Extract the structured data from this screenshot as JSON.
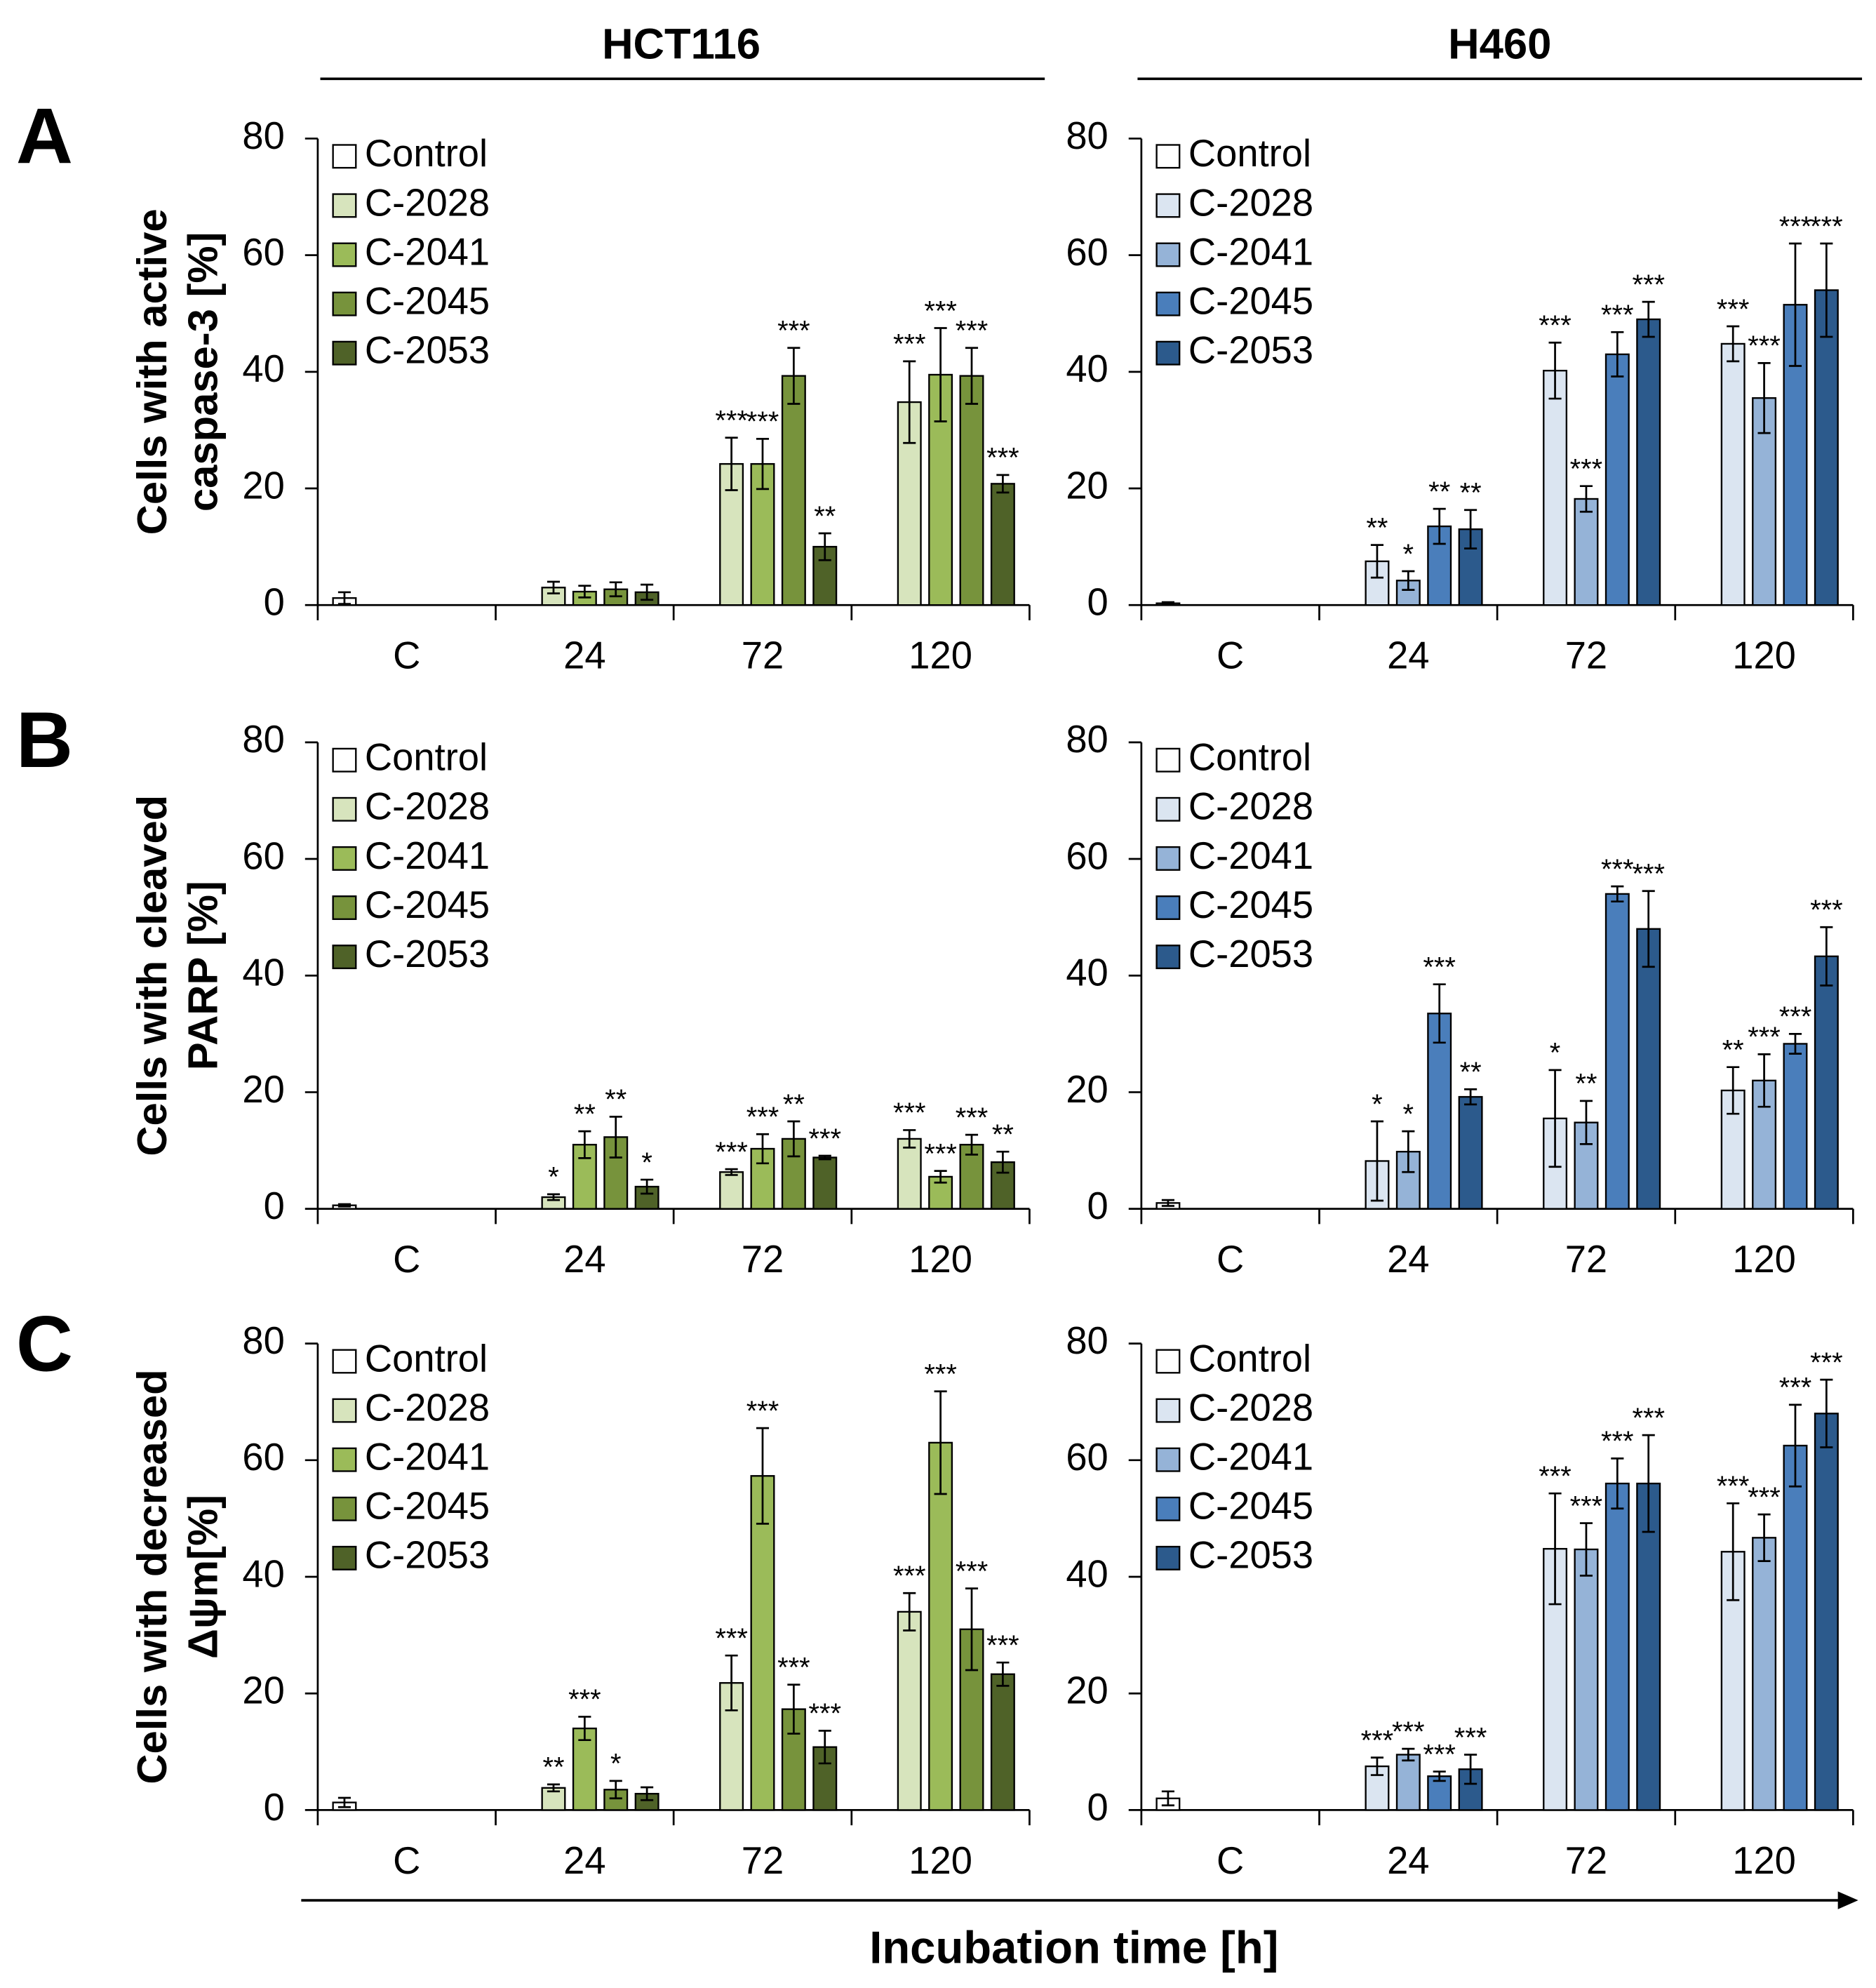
{
  "columns": [
    "HCT116",
    "H460"
  ],
  "panels": [
    "A",
    "B",
    "C"
  ],
  "xlabel": "Incubation time [h]",
  "chart_data": [
    {
      "type": "bar",
      "ylabel": [
        "Cells with active",
        "caspase-3 [%]"
      ],
      "categories": [
        "C",
        "24",
        "72",
        "120"
      ],
      "ylim": [
        0,
        80
      ],
      "yticks": [
        0,
        20,
        40,
        60,
        80
      ],
      "legend": "upper left",
      "series": [
        {
          "name": "Control",
          "color": "#ffffff",
          "values": [
            1.2,
            null,
            null,
            null
          ],
          "errors": [
            1,
            null,
            null,
            null
          ]
        },
        {
          "name": "C-2028",
          "color": "#d7e4bd",
          "values": [
            null,
            3,
            24.2,
            34.8
          ],
          "errors": [
            null,
            1,
            4.5,
            7
          ],
          "significance": [
            null,
            null,
            "***",
            "***"
          ]
        },
        {
          "name": "C-2041",
          "color": "#9bbb59",
          "values": [
            null,
            2.3,
            24.2,
            39.5
          ],
          "errors": [
            null,
            1,
            4.3,
            8
          ],
          "significance": [
            null,
            null,
            "***",
            "***"
          ]
        },
        {
          "name": "C-2045",
          "color": "#77933c",
          "values": [
            null,
            2.7,
            39.3,
            39.3
          ],
          "errors": [
            null,
            1.2,
            4.8,
            4.8
          ],
          "significance": [
            null,
            null,
            "***",
            "***"
          ]
        },
        {
          "name": "C-2053",
          "color": "#4f6228",
          "values": [
            null,
            2.2,
            10,
            20.8
          ],
          "errors": [
            null,
            1.3,
            2.3,
            1.5
          ],
          "significance": [
            null,
            null,
            "**",
            "***"
          ]
        }
      ]
    },
    {
      "type": "bar",
      "categories": [
        "C",
        "24",
        "72",
        "120"
      ],
      "ylim": [
        0,
        80
      ],
      "yticks": [
        0,
        20,
        40,
        60,
        80
      ],
      "legend": "upper left",
      "series": [
        {
          "name": "Control",
          "color": "#ffffff",
          "values": [
            0.3,
            null,
            null,
            null
          ],
          "errors": [
            0.2,
            null,
            null,
            null
          ]
        },
        {
          "name": "C-2028",
          "color": "#dbe5f1",
          "values": [
            null,
            7.5,
            40.2,
            44.8
          ],
          "errors": [
            null,
            2.8,
            4.8,
            3
          ],
          "significance": [
            null,
            "**",
            "***",
            "***"
          ]
        },
        {
          "name": "C-2041",
          "color": "#95b3d7",
          "values": [
            null,
            4.2,
            18.2,
            35.5
          ],
          "errors": [
            null,
            1.6,
            2.2,
            6
          ],
          "significance": [
            null,
            "*",
            "***",
            "***"
          ]
        },
        {
          "name": "C-2045",
          "color": "#4a7ebb",
          "values": [
            null,
            13.5,
            43,
            51.5
          ],
          "errors": [
            null,
            3,
            3.8,
            10.5
          ],
          "significance": [
            null,
            "**",
            "***",
            "***"
          ]
        },
        {
          "name": "C-2053",
          "color": "#2c5a8c",
          "values": [
            null,
            13,
            49,
            54
          ],
          "errors": [
            null,
            3.3,
            3,
            8
          ],
          "significance": [
            null,
            "**",
            "***",
            "***"
          ]
        }
      ]
    },
    {
      "type": "bar",
      "ylabel": [
        "Cells with cleaved",
        "PARP [%]"
      ],
      "categories": [
        "C",
        "24",
        "72",
        "120"
      ],
      "ylim": [
        0,
        80
      ],
      "yticks": [
        0,
        20,
        40,
        60,
        80
      ],
      "legend": "upper left",
      "series": [
        {
          "name": "Control",
          "color": "#ffffff",
          "values": [
            0.6,
            null,
            null,
            null
          ],
          "errors": [
            0.2,
            null,
            null,
            null
          ]
        },
        {
          "name": "C-2028",
          "color": "#d7e4bd",
          "values": [
            null,
            2,
            6.3,
            12
          ],
          "errors": [
            null,
            0.5,
            0.5,
            1.5
          ],
          "significance": [
            null,
            "*",
            "***",
            "***"
          ]
        },
        {
          "name": "C-2041",
          "color": "#9bbb59",
          "values": [
            null,
            11,
            10.3,
            5.5
          ],
          "errors": [
            null,
            2.3,
            2.5,
            1
          ],
          "significance": [
            null,
            "**",
            "***",
            "***"
          ]
        },
        {
          "name": "C-2045",
          "color": "#77933c",
          "values": [
            null,
            12.3,
            12,
            11
          ],
          "errors": [
            null,
            3.5,
            3,
            1.7
          ],
          "significance": [
            null,
            "**",
            "**",
            "***"
          ]
        },
        {
          "name": "C-2053",
          "color": "#4f6228",
          "values": [
            null,
            3.8,
            8.8,
            8
          ],
          "errors": [
            null,
            1.2,
            0.3,
            1.8
          ],
          "significance": [
            null,
            "*",
            "***",
            "**"
          ]
        }
      ]
    },
    {
      "type": "bar",
      "categories": [
        "C",
        "24",
        "72",
        "120"
      ],
      "ylim": [
        0,
        80
      ],
      "yticks": [
        0,
        20,
        40,
        60,
        80
      ],
      "legend": "upper left",
      "series": [
        {
          "name": "Control",
          "color": "#ffffff",
          "values": [
            1,
            null,
            null,
            null
          ],
          "errors": [
            0.5,
            null,
            null,
            null
          ]
        },
        {
          "name": "C-2028",
          "color": "#dbe5f1",
          "values": [
            null,
            8.2,
            15.5,
            20.3
          ],
          "errors": [
            null,
            6.8,
            8.3,
            4
          ],
          "significance": [
            null,
            "*",
            "*",
            "**"
          ]
        },
        {
          "name": "C-2041",
          "color": "#95b3d7",
          "values": [
            null,
            9.8,
            14.8,
            22
          ],
          "errors": [
            null,
            3.5,
            3.7,
            4.5
          ],
          "significance": [
            null,
            "*",
            "**",
            "***"
          ]
        },
        {
          "name": "C-2045",
          "color": "#4a7ebb",
          "values": [
            null,
            33.5,
            54,
            28.3
          ],
          "errors": [
            null,
            5,
            1.3,
            1.7
          ],
          "significance": [
            null,
            "***",
            "***",
            "***"
          ]
        },
        {
          "name": "C-2053",
          "color": "#2c5a8c",
          "values": [
            null,
            19.2,
            48,
            43.3
          ],
          "errors": [
            null,
            1.3,
            6.5,
            5
          ],
          "significance": [
            null,
            "**",
            "***",
            "***"
          ]
        }
      ]
    },
    {
      "type": "bar",
      "ylabel": [
        "Cells with decreased",
        "Δψm[%]"
      ],
      "categories": [
        "C",
        "24",
        "72",
        "120"
      ],
      "ylim": [
        0,
        80
      ],
      "yticks": [
        0,
        20,
        40,
        60,
        80
      ],
      "legend": "upper left",
      "series": [
        {
          "name": "Control",
          "color": "#ffffff",
          "values": [
            1.3,
            null,
            null,
            null
          ],
          "errors": [
            0.8,
            null,
            null,
            null
          ]
        },
        {
          "name": "C-2028",
          "color": "#d7e4bd",
          "values": [
            null,
            3.8,
            21.8,
            34
          ],
          "errors": [
            null,
            0.6,
            4.7,
            3.2
          ],
          "significance": [
            null,
            "**",
            "***",
            "***"
          ]
        },
        {
          "name": "C-2041",
          "color": "#9bbb59",
          "values": [
            null,
            14,
            57.3,
            63
          ],
          "errors": [
            null,
            2,
            8.2,
            8.8
          ],
          "significance": [
            null,
            "***",
            "***",
            "***"
          ]
        },
        {
          "name": "C-2045",
          "color": "#77933c",
          "values": [
            null,
            3.5,
            17.3,
            31
          ],
          "errors": [
            null,
            1.5,
            4.2,
            7
          ],
          "significance": [
            null,
            "*",
            "***",
            "***"
          ]
        },
        {
          "name": "C-2053",
          "color": "#4f6228",
          "values": [
            null,
            2.8,
            10.8,
            23.3
          ],
          "errors": [
            null,
            1.1,
            2.8,
            2
          ],
          "significance": [
            null,
            null,
            "***",
            "***"
          ]
        }
      ]
    },
    {
      "type": "bar",
      "categories": [
        "C",
        "24",
        "72",
        "120"
      ],
      "ylim": [
        0,
        80
      ],
      "yticks": [
        0,
        20,
        40,
        60,
        80
      ],
      "legend": "upper left",
      "series": [
        {
          "name": "Control",
          "color": "#ffffff",
          "values": [
            2,
            null,
            null,
            null
          ],
          "errors": [
            1.2,
            null,
            null,
            null
          ]
        },
        {
          "name": "C-2028",
          "color": "#dbe5f1",
          "values": [
            null,
            7.5,
            44.8,
            44.3
          ],
          "errors": [
            null,
            1.5,
            9.5,
            8.3
          ],
          "significance": [
            null,
            "***",
            "***",
            "***"
          ]
        },
        {
          "name": "C-2041",
          "color": "#95b3d7",
          "values": [
            null,
            9.5,
            44.7,
            46.7
          ],
          "errors": [
            null,
            1,
            4.5,
            4
          ],
          "significance": [
            null,
            "***",
            "***",
            "***"
          ]
        },
        {
          "name": "C-2045",
          "color": "#4a7ebb",
          "values": [
            null,
            5.8,
            56,
            62.5
          ],
          "errors": [
            null,
            0.8,
            4.3,
            7
          ],
          "significance": [
            null,
            "***",
            "***",
            "***"
          ]
        },
        {
          "name": "C-2053",
          "color": "#2c5a8c",
          "values": [
            null,
            7,
            56,
            68
          ],
          "errors": [
            null,
            2.5,
            8.3,
            5.8
          ],
          "significance": [
            null,
            "***",
            "***",
            "***"
          ]
        }
      ]
    }
  ]
}
